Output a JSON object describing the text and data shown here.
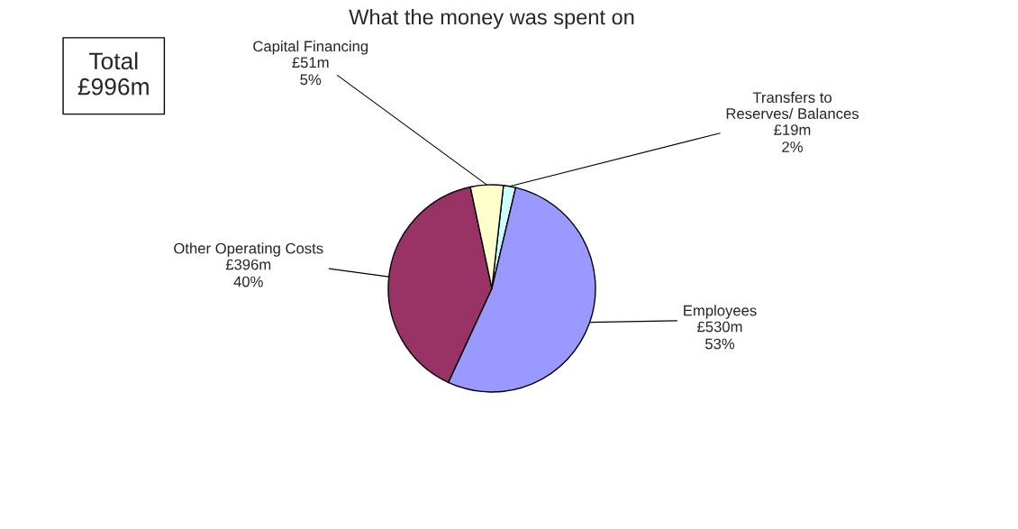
{
  "chart_data": {
    "type": "pie",
    "title": "What the money was spent on",
    "categories": [
      "Transfers to\nReserves/ Balances",
      "Employees",
      "Other Operating Costs",
      "Capital Financing"
    ],
    "values": [
      19,
      530,
      396,
      51
    ],
    "value_labels": [
      "£19m",
      "£530m",
      "£396m",
      "£51m"
    ],
    "colors": [
      "#ccffff",
      "#9999ff",
      "#993366",
      "#ffffcc"
    ],
    "annotations": [
      "Total\n£996m",
      "2%",
      "53%",
      "40%",
      "5%"
    ]
  }
}
